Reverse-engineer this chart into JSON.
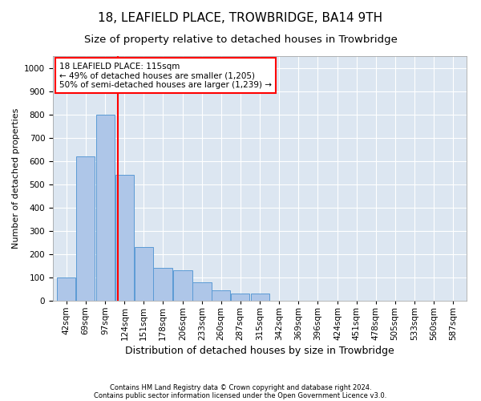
{
  "title1": "18, LEAFIELD PLACE, TROWBRIDGE, BA14 9TH",
  "title2": "Size of property relative to detached houses in Trowbridge",
  "xlabel": "Distribution of detached houses by size in Trowbridge",
  "ylabel": "Number of detached properties",
  "footer1": "Contains HM Land Registry data © Crown copyright and database right 2024.",
  "footer2": "Contains public sector information licensed under the Open Government Licence v3.0.",
  "annotation_title": "18 LEAFIELD PLACE: 115sqm",
  "annotation_line2": "← 49% of detached houses are smaller (1,205)",
  "annotation_line3": "50% of semi-detached houses are larger (1,239) →",
  "bar_color": "#aec6e8",
  "bar_edge_color": "#5b9bd5",
  "bg_color": "#dce6f1",
  "grid_color": "#ffffff",
  "vline_x": 115,
  "vline_color": "red",
  "categories": [
    42,
    69,
    97,
    124,
    151,
    178,
    206,
    233,
    260,
    287,
    315,
    342,
    369,
    396,
    424,
    451,
    478,
    505,
    533,
    560,
    587
  ],
  "bar_heights": [
    100,
    620,
    800,
    540,
    230,
    140,
    130,
    80,
    45,
    30,
    30,
    0,
    0,
    0,
    0,
    0,
    0,
    0,
    0,
    0,
    0
  ],
  "bin_width": 27,
  "ylim": [
    0,
    1050
  ],
  "yticks": [
    0,
    100,
    200,
    300,
    400,
    500,
    600,
    700,
    800,
    900,
    1000
  ],
  "annotation_box_color": "white",
  "annotation_box_edge": "red",
  "title1_fontsize": 11,
  "title2_fontsize": 9.5,
  "xlabel_fontsize": 9,
  "ylabel_fontsize": 8,
  "tick_fontsize": 7.5,
  "footer_fontsize": 6,
  "annot_fontsize": 7.5
}
